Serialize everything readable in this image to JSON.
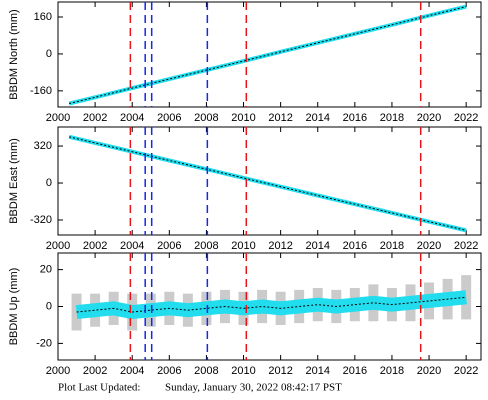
{
  "chart_data": [
    {
      "type": "line",
      "ylabel": "BBDM North (mm)",
      "x": [
        2000.6,
        2002,
        2004,
        2006,
        2008,
        2010,
        2012,
        2014,
        2016,
        2018,
        2020,
        2022
      ],
      "series": [
        {
          "color": "#22ddee",
          "values": [
            -215,
            -188,
            -148,
            -109,
            -70,
            -31,
            9,
            48,
            87,
            126,
            166,
            205
          ]
        }
      ],
      "xlim": [
        2000,
        2022.8
      ],
      "xticks": [
        2000,
        2002,
        2004,
        2006,
        2008,
        2010,
        2012,
        2014,
        2016,
        2018,
        2020,
        2022
      ],
      "ylim": [
        -230,
        225
      ],
      "yticks": [
        -160,
        0,
        160
      ],
      "events": [
        {
          "x": 2003.9,
          "color": "#e8141a"
        },
        {
          "x": 2004.7,
          "color": "#1428e8"
        },
        {
          "x": 2005.05,
          "color": "#1428e8"
        },
        {
          "x": 2008.05,
          "color": "#1428e8"
        },
        {
          "x": 2010.15,
          "color": "#e8141a"
        },
        {
          "x": 2019.55,
          "color": "#e8141a"
        }
      ]
    },
    {
      "type": "line",
      "ylabel": "BBDM East (mm)",
      "x": [
        2000.6,
        2002,
        2004,
        2006,
        2008,
        2010,
        2012,
        2014,
        2016,
        2018,
        2020,
        2022
      ],
      "series": [
        {
          "color": "#22ddee",
          "values": [
            400,
            347,
            271,
            195,
            120,
            44,
            -32,
            -108,
            -183,
            -259,
            -335,
            -410
          ]
        }
      ],
      "xlim": [
        2000,
        2022.8
      ],
      "xticks": [
        2000,
        2002,
        2004,
        2006,
        2008,
        2010,
        2012,
        2014,
        2016,
        2018,
        2020,
        2022
      ],
      "ylim": [
        -450,
        485
      ],
      "yticks": [
        -320,
        0,
        320
      ],
      "events": [
        {
          "x": 2003.9,
          "color": "#e8141a"
        },
        {
          "x": 2004.7,
          "color": "#1428e8"
        },
        {
          "x": 2005.05,
          "color": "#1428e8"
        },
        {
          "x": 2008.05,
          "color": "#1428e8"
        },
        {
          "x": 2010.15,
          "color": "#e8141a"
        },
        {
          "x": 2019.55,
          "color": "#e8141a"
        }
      ]
    },
    {
      "type": "errorline",
      "ylabel": "BBDM Up (mm)",
      "x": [
        2001,
        2002,
        2003,
        2004,
        2005,
        2006,
        2007,
        2008,
        2009,
        2010,
        2011,
        2012,
        2013,
        2014,
        2015,
        2016,
        2017,
        2018,
        2019,
        2020,
        2021,
        2022
      ],
      "series": [
        {
          "color": "#22ddee",
          "values": [
            -3,
            -2,
            -1,
            -3,
            -2,
            -1,
            -2,
            -1,
            0,
            -1,
            0,
            -1,
            0,
            1,
            0,
            1,
            2,
            1,
            2,
            3,
            4,
            5
          ],
          "errors": [
            10,
            9,
            9,
            10,
            9,
            9,
            9,
            9,
            9,
            9,
            9,
            9,
            9,
            9,
            9,
            9,
            10,
            9,
            10,
            10,
            11,
            12
          ]
        }
      ],
      "xlim": [
        2000,
        2022.8
      ],
      "xticks": [
        2000,
        2002,
        2004,
        2006,
        2008,
        2010,
        2012,
        2014,
        2016,
        2018,
        2020,
        2022
      ],
      "ylim": [
        -29,
        29
      ],
      "yticks": [
        -20,
        0,
        20
      ],
      "events": [
        {
          "x": 2003.9,
          "color": "#e8141a"
        },
        {
          "x": 2004.7,
          "color": "#1428e8"
        },
        {
          "x": 2005.05,
          "color": "#1428e8"
        },
        {
          "x": 2008.05,
          "color": "#1428e8"
        },
        {
          "x": 2010.15,
          "color": "#e8141a"
        },
        {
          "x": 2019.55,
          "color": "#e8141a"
        }
      ]
    }
  ],
  "footer": {
    "label": "Plot Last Updated:",
    "date": "Sunday, January 30, 2022 08:42:17 PST"
  }
}
